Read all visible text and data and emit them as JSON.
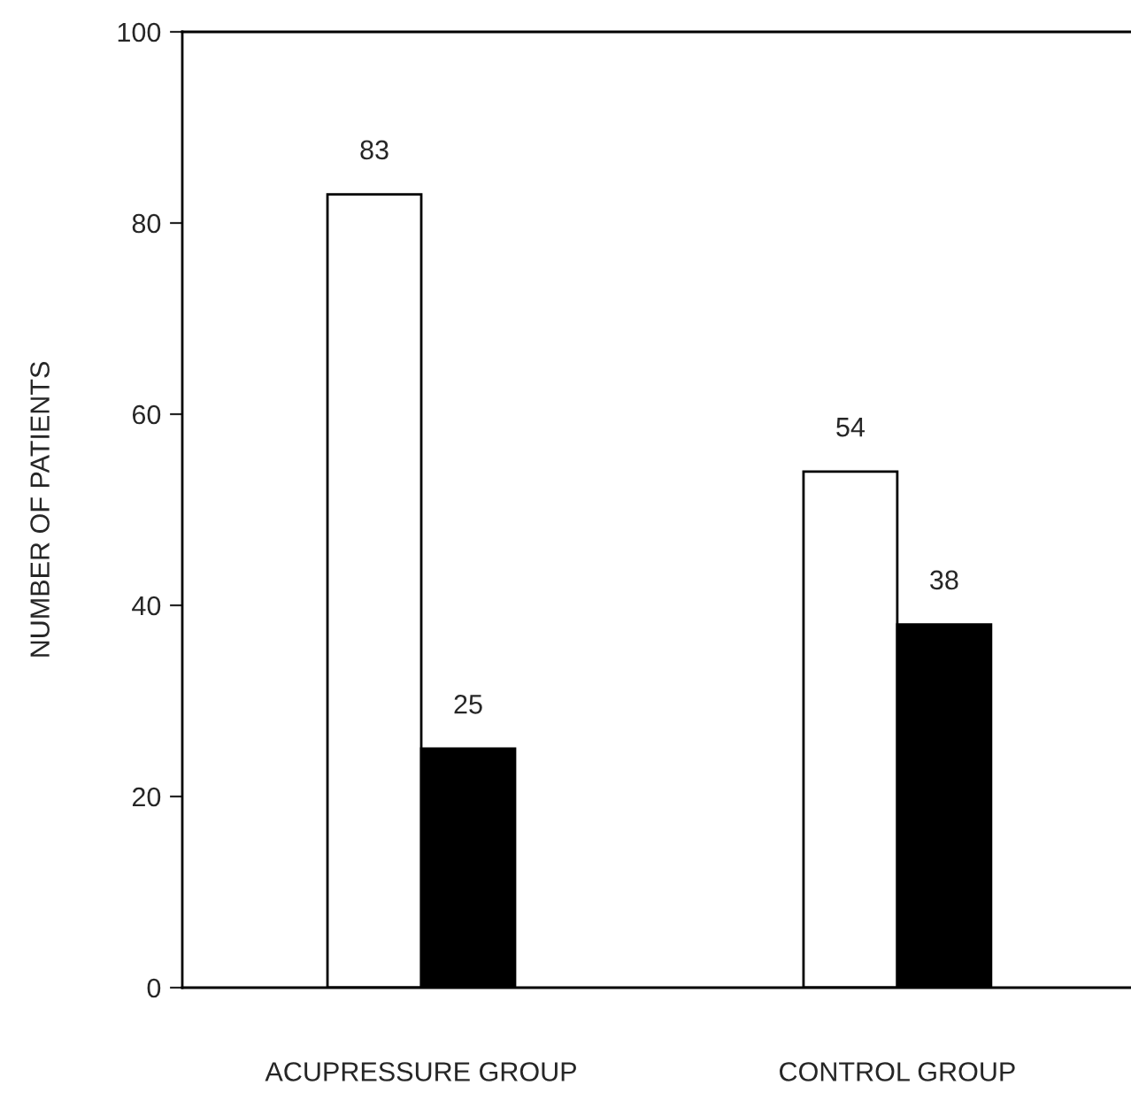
{
  "chart_data": {
    "type": "bar",
    "ylabel": "NUMBER OF PATIENTS",
    "categories": [
      "ACUPRESSURE GROUP",
      "CONTROL GROUP"
    ],
    "series": [
      {
        "color": "#ffffff",
        "values": [
          83,
          54
        ]
      },
      {
        "color": "#000000",
        "values": [
          25,
          38
        ]
      }
    ],
    "ylim": [
      0,
      100
    ],
    "yticks": [
      0,
      20,
      40,
      60,
      80,
      100
    ],
    "data_labels": true,
    "grid": false,
    "legend": false
  }
}
